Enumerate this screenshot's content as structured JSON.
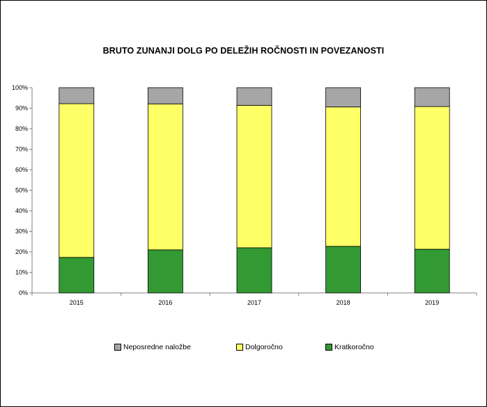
{
  "colors": {
    "Neposredne naložbe": "#a6a6a6",
    "Dolgoročno": "#ffff66",
    "Kratkoročno": "#339933"
  },
  "chart_data": {
    "type": "bar",
    "stacked": true,
    "title": "BRUTO ZUNANJI DOLG PO DELEŽIH ROČNOSTI IN POVEZANOSTI",
    "xlabel": "",
    "ylabel": "",
    "categories": [
      "2015",
      "2016",
      "2017",
      "2018",
      "2019"
    ],
    "series": [
      {
        "name": "Kratkoročno",
        "values": [
          17.3,
          21.0,
          22.0,
          22.7,
          21.3
        ]
      },
      {
        "name": "Dolgoročno",
        "values": [
          74.9,
          71.1,
          69.4,
          67.9,
          69.5
        ]
      },
      {
        "name": "Neposredne naložbe",
        "values": [
          7.8,
          7.9,
          8.6,
          9.4,
          9.2
        ]
      }
    ],
    "legend_order": [
      "Neposredne naložbe",
      "Dolgoročno",
      "Kratkoročno"
    ],
    "ylim": [
      0,
      100
    ],
    "yticks": [
      "0%",
      "10%",
      "20%",
      "30%",
      "40%",
      "50%",
      "60%",
      "70%",
      "80%",
      "90%",
      "100%"
    ],
    "grid": false,
    "legend_position": "bottom"
  }
}
